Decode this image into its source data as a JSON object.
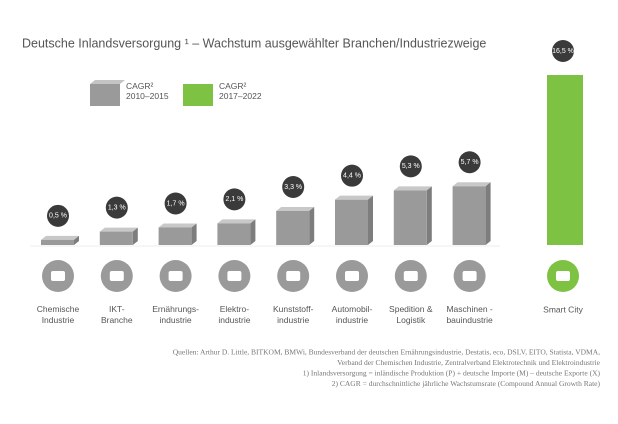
{
  "chart_data": {
    "type": "bar",
    "title": "Deutsche Inlandsversorgung ¹ – Wachstum ausgewählter Branchen/Industriezweige",
    "categories": [
      "Chemische\nIndustrie",
      "IKT-\nBranche",
      "Ernährungs-\nindustrie",
      "Elektro-\nindustrie",
      "Kunststoff-\nindustrie",
      "Automobil-\nindustrie",
      "Spedition &\nLogistik",
      "Maschinen -\nbauindustrie",
      "Smart City"
    ],
    "series": [
      {
        "name": "CAGR²\n2010–2015",
        "color": "#9a9a9a",
        "values": [
          0.5,
          1.3,
          1.7,
          2.1,
          3.3,
          4.4,
          5.3,
          5.7,
          null
        ],
        "value_labels": [
          "0,5 %",
          "1,3 %",
          "1,7 %",
          "2,1 %",
          "3,3 %",
          "4,4 %",
          "5,3 %",
          "5,7 %",
          null
        ]
      },
      {
        "name": "CAGR²\n2017–2022",
        "color": "#7dc242",
        "values": [
          null,
          null,
          null,
          null,
          null,
          null,
          null,
          null,
          16.5
        ],
        "value_labels": [
          null,
          null,
          null,
          null,
          null,
          null,
          null,
          null,
          "16,5 %"
        ]
      }
    ],
    "notes": [
      "Quellen: Arthur D. Little, BITKOM, BMWi, Bundesverband der deutschen Ernährungsindustrie, Destatis, eco, DSLV, EITO, Statista, VDMA,",
      "Verband der Chemischen Industrie, Zentralverband Elektrotechnik und Elektroindustrie",
      "1) Inlandsversorgung = inländische Produktion (P) + deutsche Importe (M) – deutsche Exporte (X)",
      "2) CAGR = durchschnittliche jährliche Wachstumsrate (Compound Annual Growth Rate)"
    ]
  }
}
